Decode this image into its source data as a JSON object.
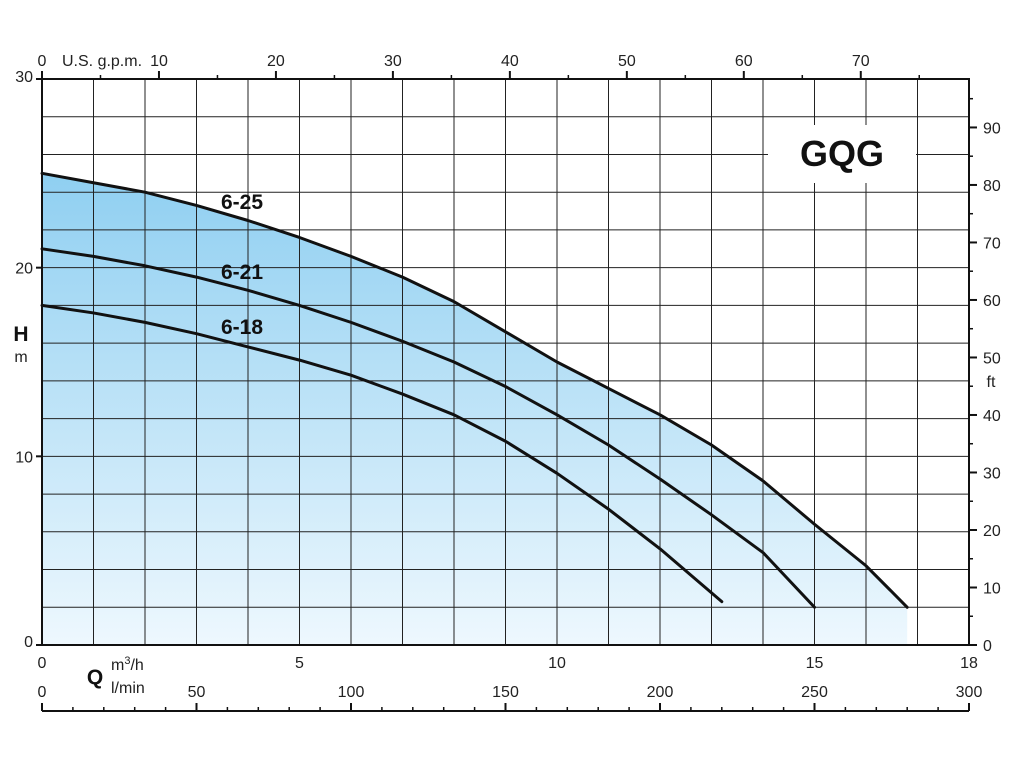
{
  "chart_data": {
    "type": "line",
    "title": "GQG",
    "x": {
      "label": "Q",
      "unit": "m³/h",
      "range": [
        0,
        18
      ],
      "ticks": [
        "0",
        "5",
        "10",
        "15",
        "18"
      ]
    },
    "x_secondary_bottom": {
      "unit": "l/min",
      "range": [
        0,
        300
      ],
      "ticks": [
        "0",
        "50",
        "100",
        "150",
        "200",
        "250",
        "300"
      ]
    },
    "x_secondary_top": {
      "unit": "U.S. g.p.m.",
      "ticks": [
        "0",
        "10",
        "20",
        "30",
        "40",
        "50",
        "60",
        "70"
      ]
    },
    "y": {
      "label": "H",
      "unit": "m",
      "range": [
        0,
        30
      ],
      "ticks": [
        "0",
        "10",
        "20",
        "30"
      ]
    },
    "y_secondary": {
      "unit": "ft",
      "ticks": [
        "0",
        "10",
        "20",
        "30",
        "40",
        "50",
        "60",
        "70",
        "80",
        "90"
      ]
    },
    "grid": true,
    "fill_under_top_curve": true,
    "colors": {
      "fill_top": "#8fcff1",
      "fill_bottom": "#eef8fe",
      "curve": "#111111",
      "grid": "#222222"
    },
    "series": [
      {
        "name": "6-25",
        "x": [
          0,
          1,
          2,
          3,
          4,
          5,
          6,
          7,
          8,
          9,
          10,
          11,
          12,
          13,
          14,
          15,
          16,
          16.8
        ],
        "y": [
          25.0,
          24.5,
          24.0,
          23.3,
          22.5,
          21.6,
          20.6,
          19.5,
          18.2,
          16.6,
          15.0,
          13.6,
          12.2,
          10.6,
          8.7,
          6.4,
          4.2,
          2.0
        ]
      },
      {
        "name": "6-21",
        "x": [
          0,
          1,
          2,
          3,
          4,
          5,
          6,
          7,
          8,
          9,
          10,
          11,
          12,
          13,
          14,
          15
        ],
        "y": [
          21.0,
          20.6,
          20.1,
          19.5,
          18.8,
          18.0,
          17.1,
          16.1,
          15.0,
          13.7,
          12.2,
          10.6,
          8.8,
          6.9,
          4.9,
          2.0
        ]
      },
      {
        "name": "6-18",
        "x": [
          0,
          1,
          2,
          3,
          4,
          5,
          6,
          7,
          8,
          9,
          10,
          11,
          12,
          13.2
        ],
        "y": [
          18.0,
          17.6,
          17.1,
          16.5,
          15.8,
          15.1,
          14.3,
          13.3,
          12.2,
          10.8,
          9.1,
          7.2,
          5.1,
          2.3
        ]
      }
    ]
  }
}
